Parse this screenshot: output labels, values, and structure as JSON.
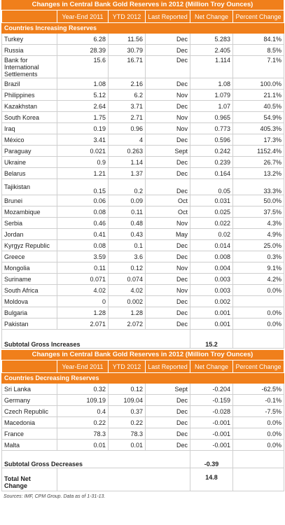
{
  "table1": {
    "title": "Changes in Central Bank Gold Reserves in 2012 (Million Troy Ounces)",
    "columns": [
      "",
      "Year-End 2011",
      "YTD 2012",
      "Last Reported",
      "Net Change",
      "Percent Change"
    ],
    "section_label": "Countries Increasing Reserves",
    "rows": [
      [
        "Turkey",
        "6.28",
        "11.56",
        "Dec",
        "5.283",
        "84.1%"
      ],
      [
        "Russia",
        "28.39",
        "30.79",
        "Dec",
        "2.405",
        "8.5%"
      ],
      [
        "Bank for International Settlements",
        "15.6",
        "16.71",
        "Dec",
        "1.114",
        "7.1%"
      ],
      [
        "Brazil",
        "1.08",
        "2.16",
        "Dec",
        "1.08",
        "100.0%"
      ],
      [
        "Philippines",
        "5.12",
        "6.2",
        "Nov",
        "1.079",
        "21.1%"
      ],
      [
        "Kazakhstan",
        "2.64",
        "3.71",
        "Dec",
        "1.07",
        "40.5%"
      ],
      [
        "South Korea",
        "1.75",
        "2.71",
        "Nov",
        "0.965",
        "54.9%"
      ],
      [
        "Iraq",
        "0.19",
        "0.96",
        "Nov",
        "0.773",
        "405.3%"
      ],
      [
        "México",
        "3.41",
        "4",
        "Dec",
        "0.596",
        "17.3%"
      ],
      [
        "Paraguay",
        "0.021",
        "0.263",
        "Sept",
        "0.242",
        "1152.4%"
      ],
      [
        "Ukraine",
        "0.9",
        "1.14",
        "Dec",
        "0.239",
        "26.7%"
      ],
      [
        "Belarus",
        "1.21",
        "1.37",
        "Dec",
        "0.164",
        "13.2%"
      ],
      [
        "Tajikistan",
        "0.15",
        "0.2",
        "Dec",
        "0.05",
        "33.3%"
      ],
      [
        "Brunei",
        "0.06",
        "0.09",
        "Oct",
        "0.031",
        "50.0%"
      ],
      [
        "Mozambique",
        "0.08",
        "0.11",
        "Oct",
        "0.025",
        "37.5%"
      ],
      [
        "Serbia",
        "0.46",
        "0.48",
        "Nov",
        "0.022",
        "4.3%"
      ],
      [
        "Jordan",
        "0.41",
        "0.43",
        "May",
        "0.02",
        "4.9%"
      ],
      [
        "Kyrgyz Republic",
        "0.08",
        "0.1",
        "Dec",
        "0.014",
        "25.0%"
      ],
      [
        "Greece",
        "3.59",
        "3.6",
        "Dec",
        "0.008",
        "0.3%"
      ],
      [
        "Mongolia",
        "0.11",
        "0.12",
        "Nov",
        "0.004",
        "9.1%"
      ],
      [
        "Suriname",
        "0.071",
        "0.074",
        "Dec",
        "0.003",
        "4.2%"
      ],
      [
        "South Africa",
        "4.02",
        "4.02",
        "Nov",
        "0.003",
        "0.0%"
      ],
      [
        "Moldova",
        "0",
        "0.002",
        "Dec",
        "0.002",
        ""
      ],
      [
        "Bulgaria",
        "1.28",
        "1.28",
        "Dec",
        "0.001",
        "0.0%"
      ],
      [
        "Pakistan",
        "2.071",
        "2.072",
        "Dec",
        "0.001",
        "0.0%"
      ]
    ],
    "subtotal_label": "Subtotal Gross Increases",
    "subtotal_value": "15.2"
  },
  "table2": {
    "title": "Changes in Central Bank Gold Reserves in 2012 (Million Troy Ounces)",
    "columns": [
      "",
      "Year-End 2011",
      "YTD 2012",
      "Last Reported",
      "Net Change",
      "Percent Change"
    ],
    "section_label": "Countries Decreasing Reserves",
    "rows": [
      [
        "Sri Lanka",
        "0.32",
        "0.12",
        "Sept",
        "-0.204",
        "-62.5%"
      ],
      [
        "Germany",
        "109.19",
        "109.04",
        "Dec",
        "-0.159",
        "-0.1%"
      ],
      [
        "Czech Republic",
        "0.4",
        "0.37",
        "Dec",
        "-0.028",
        "-7.5%"
      ],
      [
        "Macedonia",
        "0.22",
        "0.22",
        "Dec",
        "-0.001",
        "0.0%"
      ],
      [
        "France",
        "78.3",
        "78.3",
        "Dec",
        "-0.001",
        "0.0%"
      ],
      [
        "Malta",
        "0.01",
        "0.01",
        "Dec",
        "-0.001",
        "0.0%"
      ]
    ],
    "subtotal_label": "Subtotal Gross Decreases",
    "subtotal_value": "-0.39",
    "total_label": "Total Net Change",
    "total_value": "14.8"
  },
  "sources": "Sources: IMF, CPM Group. Data as of 1-31-13.",
  "colors": {
    "accent": "#f07f1b",
    "border": "#cfcfcf"
  }
}
